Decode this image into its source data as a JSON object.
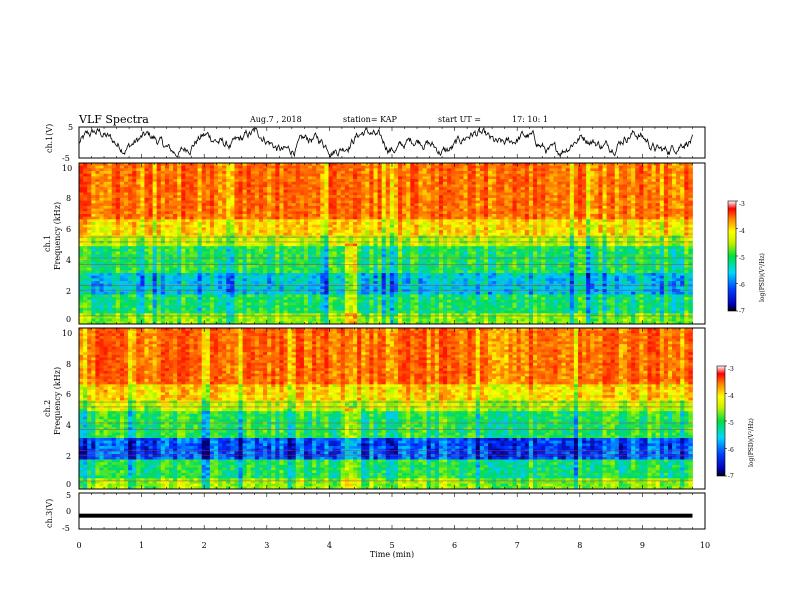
{
  "header": {
    "title": "VLF Spectra",
    "date": "Aug.7 , 2018",
    "station": "station= KAP",
    "start": "start UT =",
    "start_time": "17: 10: 1"
  },
  "chart_data": [
    {
      "type": "line",
      "panel": "ch1-waveform",
      "ylabel": "ch.1(V)",
      "ylim": [
        -5,
        5
      ],
      "yticks": [
        "5",
        "-5"
      ],
      "xlim": [
        0,
        10
      ],
      "color": "#000000"
    },
    {
      "type": "heatmap",
      "panel": "ch1-spectrogram",
      "ylabel": "ch.1",
      "ylabel2": "Frequency (kHz)",
      "ylim": [
        0,
        10
      ],
      "yticks": [
        "0",
        "2",
        "4",
        "6",
        "8",
        "10"
      ],
      "xlim": [
        0,
        9.8
      ],
      "colorbar": {
        "label": "log(PSD)(V²/Hz)",
        "min": -7,
        "max": -3,
        "ticks": [
          "-3",
          "-4",
          "-5",
          "-6",
          "-7"
        ]
      }
    },
    {
      "type": "heatmap",
      "panel": "ch2-spectrogram",
      "ylabel": "ch.2",
      "ylabel2": "Frequency (kHz)",
      "ylim": [
        0,
        10
      ],
      "yticks": [
        "0",
        "2",
        "4",
        "6",
        "8",
        "10"
      ],
      "xlim": [
        0,
        9.8
      ],
      "colorbar": {
        "label": "log(PSD)(V²/Hz)",
        "min": -7,
        "max": -3,
        "ticks": [
          "-3",
          "-4",
          "-5",
          "-6",
          "-7"
        ]
      }
    },
    {
      "type": "line",
      "panel": "ch3-waveform",
      "ylabel": "ch.3(V)",
      "ylim": [
        -5,
        5
      ],
      "yticks": [
        "5",
        "0",
        "-5"
      ],
      "level": -1.3,
      "xlim": [
        0,
        9.8
      ],
      "color": "#000000"
    }
  ],
  "xaxis": {
    "label": "Time (min)",
    "range": [
      0,
      10
    ],
    "ticks": [
      "0",
      "1",
      "2",
      "3",
      "4",
      "5",
      "6",
      "7",
      "8",
      "9",
      "10"
    ]
  }
}
